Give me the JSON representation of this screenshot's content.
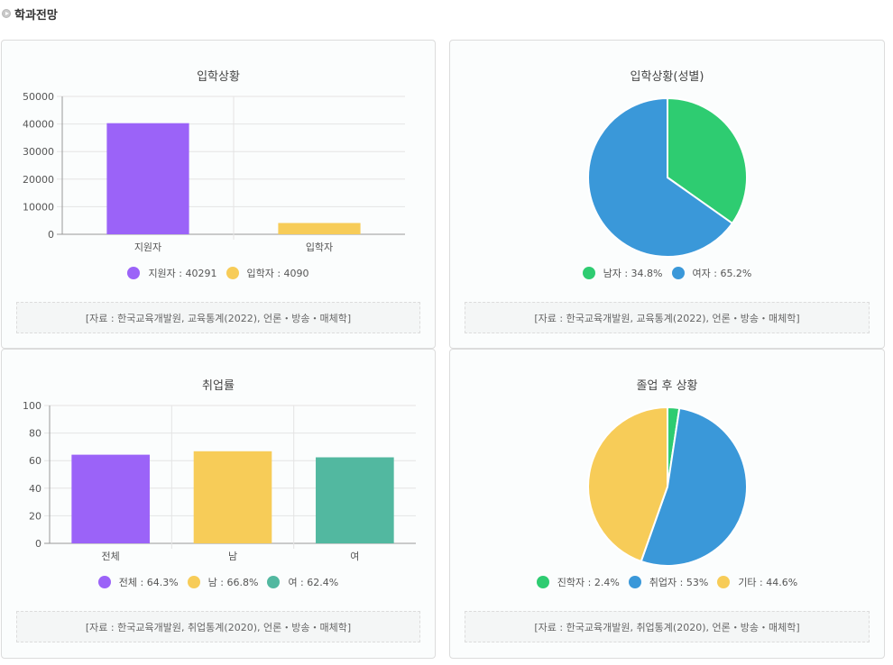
{
  "header": {
    "title": "학과전망"
  },
  "colors": {
    "purple": "#9b63f8",
    "yellow": "#f7cc58",
    "green": "#2ecc71",
    "blue": "#3a98d9",
    "teal": "#52b8a0"
  },
  "cards": [
    {
      "title": "입학상황",
      "source": "[자료 : 한국교육개발원, 교육통계(2022), 언론・방송・매체학]",
      "legend": [
        {
          "label": "지원자 : 40291",
          "color": "#9b63f8"
        },
        {
          "label": "입학자 : 4090",
          "color": "#f7cc58"
        }
      ]
    },
    {
      "title": "입학상황(성별)",
      "source": "[자료 : 한국교육개발원, 교육통계(2022), 언론・방송・매체학]",
      "legend": [
        {
          "label": "남자 : 34.8%",
          "color": "#2ecc71"
        },
        {
          "label": "여자 : 65.2%",
          "color": "#3a98d9"
        }
      ]
    },
    {
      "title": "취업률",
      "source": "[자료 : 한국교육개발원, 취업통계(2020), 언론・방송・매체학]",
      "legend": [
        {
          "label": "전체 : 64.3%",
          "color": "#9b63f8"
        },
        {
          "label": "남 : 66.8%",
          "color": "#f7cc58"
        },
        {
          "label": "여 : 62.4%",
          "color": "#52b8a0"
        }
      ]
    },
    {
      "title": "졸업 후 상황",
      "source": "[자료 : 한국교육개발원, 취업통계(2020), 언론・방송・매체학]",
      "legend": [
        {
          "label": "진학자 : 2.4%",
          "color": "#2ecc71"
        },
        {
          "label": "취업자 : 53%",
          "color": "#3a98d9"
        },
        {
          "label": "기타 : 44.6%",
          "color": "#f7cc58"
        }
      ]
    }
  ],
  "chart_data": [
    {
      "type": "bar",
      "title": "입학상황",
      "categories": [
        "지원자",
        "입학자"
      ],
      "values": [
        40291,
        4090
      ],
      "colors": [
        "#9b63f8",
        "#f7cc58"
      ],
      "ylim": [
        0,
        50000
      ],
      "yticks": [
        0,
        10000,
        20000,
        30000,
        40000,
        50000
      ],
      "grid": true
    },
    {
      "type": "pie",
      "title": "입학상황(성별)",
      "labels": [
        "남자",
        "여자"
      ],
      "values": [
        34.8,
        65.2
      ],
      "colors": [
        "#2ecc71",
        "#3a98d9"
      ]
    },
    {
      "type": "bar",
      "title": "취업률",
      "categories": [
        "전체",
        "남",
        "여"
      ],
      "values": [
        64.3,
        66.8,
        62.4
      ],
      "colors": [
        "#9b63f8",
        "#f7cc58",
        "#52b8a0"
      ],
      "ylim": [
        0,
        100
      ],
      "yticks": [
        0,
        20,
        40,
        60,
        80,
        100
      ],
      "grid": true
    },
    {
      "type": "pie",
      "title": "졸업 후 상황",
      "labels": [
        "진학자",
        "취업자",
        "기타"
      ],
      "values": [
        2.4,
        53,
        44.6
      ],
      "colors": [
        "#2ecc71",
        "#3a98d9",
        "#f7cc58"
      ]
    }
  ]
}
